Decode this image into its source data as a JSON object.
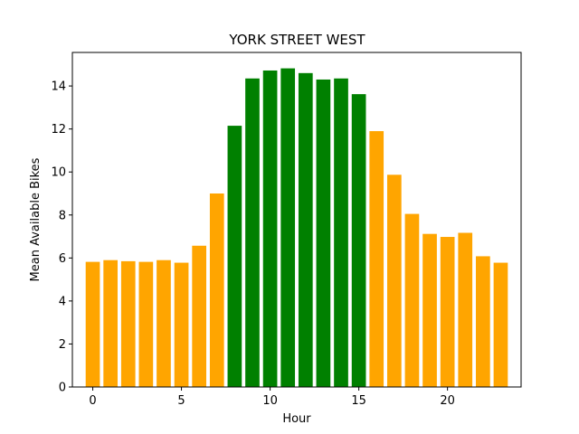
{
  "chart_data": {
    "type": "bar",
    "title": "YORK STREET WEST",
    "xlabel": "Hour",
    "ylabel": "Mean Available Bikes",
    "x": [
      0,
      1,
      2,
      3,
      4,
      5,
      6,
      7,
      8,
      9,
      10,
      11,
      12,
      13,
      14,
      15,
      16,
      17,
      18,
      19,
      20,
      21,
      22,
      23
    ],
    "values": [
      5.82,
      5.9,
      5.85,
      5.82,
      5.9,
      5.78,
      6.57,
      9.0,
      12.15,
      14.35,
      14.72,
      14.82,
      14.6,
      14.3,
      14.35,
      13.62,
      11.9,
      9.87,
      8.05,
      7.12,
      6.98,
      7.17,
      6.08,
      5.78
    ],
    "colors": [
      "#FFA500",
      "#FFA500",
      "#FFA500",
      "#FFA500",
      "#FFA500",
      "#FFA500",
      "#FFA500",
      "#FFA500",
      "#008000",
      "#008000",
      "#008000",
      "#008000",
      "#008000",
      "#008000",
      "#008000",
      "#008000",
      "#FFA500",
      "#FFA500",
      "#FFA500",
      "#FFA500",
      "#FFA500",
      "#FFA500",
      "#FFA500",
      "#FFA500"
    ],
    "xlim": [
      -1.15,
      24.15
    ],
    "ylim": [
      0,
      15.56
    ],
    "xticks": [
      0,
      5,
      10,
      15,
      20
    ],
    "yticks": [
      0,
      2,
      4,
      6,
      8,
      10,
      12,
      14
    ],
    "bar_width": 0.8,
    "grid": false,
    "legend": "none"
  }
}
